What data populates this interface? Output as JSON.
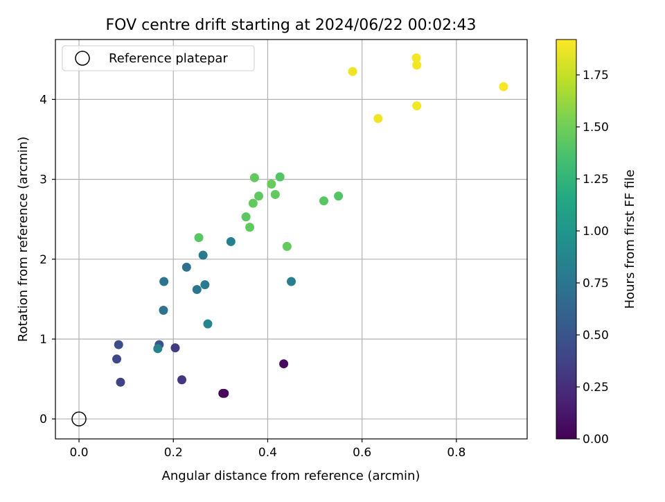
{
  "chart_data": {
    "type": "scatter",
    "title": "FOV centre drift starting at 2024/06/22 00:02:43",
    "xlabel": "Angular distance from reference (arcmin)",
    "ylabel": "Rotation from reference (arcmin)",
    "xlim": [
      -0.05,
      0.95
    ],
    "ylim": [
      -0.25,
      4.75
    ],
    "xticks": [
      0.0,
      0.2,
      0.4,
      0.6,
      0.8
    ],
    "xtick_labels": [
      "0.0",
      "0.2",
      "0.4",
      "0.6",
      "0.8"
    ],
    "yticks": [
      0,
      1,
      2,
      3,
      4
    ],
    "ytick_labels": [
      "0",
      "1",
      "2",
      "3",
      "4"
    ],
    "grid": true,
    "legend": {
      "position": "top-left",
      "entries": [
        {
          "label": "Reference platepar",
          "marker": "open-circle",
          "color": "#000000"
        }
      ]
    },
    "reference_point": {
      "x": 0.0,
      "y": 0.0
    },
    "colorbar": {
      "label": "Hours from first FF file",
      "colormap": "viridis",
      "range": [
        0.0,
        1.92
      ],
      "ticks": [
        0.0,
        0.25,
        0.5,
        0.75,
        1.0,
        1.25,
        1.5,
        1.75
      ],
      "tick_labels": [
        "0.00",
        "0.25",
        "0.50",
        "0.75",
        "1.00",
        "1.25",
        "1.50",
        "1.75"
      ]
    },
    "points": [
      {
        "x": 0.305,
        "y": 0.32,
        "c": 0.02
      },
      {
        "x": 0.308,
        "y": 0.32,
        "c": 0.04
      },
      {
        "x": 0.434,
        "y": 0.69,
        "c": 0.06
      },
      {
        "x": 0.218,
        "y": 0.49,
        "c": 0.3
      },
      {
        "x": 0.204,
        "y": 0.89,
        "c": 0.33
      },
      {
        "x": 0.088,
        "y": 0.46,
        "c": 0.38
      },
      {
        "x": 0.08,
        "y": 0.75,
        "c": 0.42
      },
      {
        "x": 0.084,
        "y": 0.93,
        "c": 0.45
      },
      {
        "x": 0.17,
        "y": 0.93,
        "c": 0.47
      },
      {
        "x": 0.167,
        "y": 0.88,
        "c": 0.85
      },
      {
        "x": 0.179,
        "y": 1.36,
        "c": 0.72
      },
      {
        "x": 0.18,
        "y": 1.72,
        "c": 0.75
      },
      {
        "x": 0.228,
        "y": 1.9,
        "c": 0.7
      },
      {
        "x": 0.25,
        "y": 1.62,
        "c": 0.75
      },
      {
        "x": 0.267,
        "y": 1.68,
        "c": 0.78
      },
      {
        "x": 0.263,
        "y": 2.05,
        "c": 0.78
      },
      {
        "x": 0.273,
        "y": 1.19,
        "c": 0.88
      },
      {
        "x": 0.322,
        "y": 2.22,
        "c": 0.82
      },
      {
        "x": 0.45,
        "y": 1.72,
        "c": 0.82
      },
      {
        "x": 0.254,
        "y": 2.27,
        "c": 1.42
      },
      {
        "x": 0.354,
        "y": 2.53,
        "c": 1.43
      },
      {
        "x": 0.362,
        "y": 2.4,
        "c": 1.44
      },
      {
        "x": 0.369,
        "y": 2.7,
        "c": 1.45
      },
      {
        "x": 0.372,
        "y": 3.02,
        "c": 1.45
      },
      {
        "x": 0.381,
        "y": 2.79,
        "c": 1.44
      },
      {
        "x": 0.408,
        "y": 2.94,
        "c": 1.47
      },
      {
        "x": 0.416,
        "y": 2.81,
        "c": 1.45
      },
      {
        "x": 0.426,
        "y": 3.03,
        "c": 1.4
      },
      {
        "x": 0.441,
        "y": 2.16,
        "c": 1.46
      },
      {
        "x": 0.519,
        "y": 2.73,
        "c": 1.42
      },
      {
        "x": 0.55,
        "y": 2.79,
        "c": 1.4
      },
      {
        "x": 0.58,
        "y": 4.35,
        "c": 1.88
      },
      {
        "x": 0.634,
        "y": 3.76,
        "c": 1.88
      },
      {
        "x": 0.715,
        "y": 4.52,
        "c": 1.89
      },
      {
        "x": 0.716,
        "y": 4.43,
        "c": 1.89
      },
      {
        "x": 0.716,
        "y": 3.92,
        "c": 1.89
      },
      {
        "x": 0.9,
        "y": 4.16,
        "c": 1.9
      }
    ]
  }
}
